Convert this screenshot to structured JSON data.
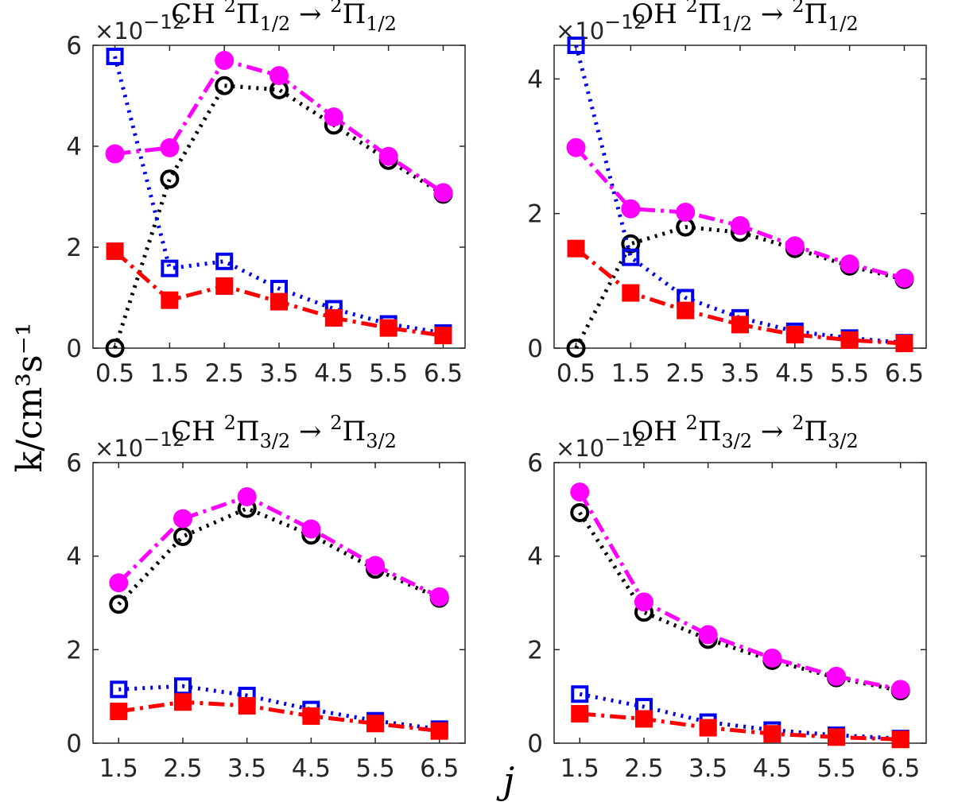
{
  "ylabel": "k/cm³s⁻¹",
  "xlabel": "j",
  "chart_data": [
    {
      "type": "line",
      "title": "CH ²Π1/2 → ²Π1/2",
      "title_parts": {
        "species": "CH",
        "from_sup": "2",
        "from_sub": "1/2",
        "to_sup": "2",
        "to_sub": "1/2"
      },
      "multiplier": "×10⁻¹²",
      "multiplier_parts": {
        "base": "×10",
        "exp": "−12"
      },
      "x": [
        0.5,
        1.5,
        2.5,
        3.5,
        4.5,
        5.5,
        6.5
      ],
      "xticks": [
        "0.5",
        "1.5",
        "2.5",
        "3.5",
        "4.5",
        "5.5",
        "6.5"
      ],
      "yticks": [
        "0",
        "2",
        "4",
        "6"
      ],
      "ylim": [
        0,
        6
      ],
      "series": [
        {
          "name": "black-open-circles",
          "color": "#000000",
          "marker": "open-circle",
          "linestyle": "dotted",
          "values": [
            0,
            3.35,
            5.2,
            5.12,
            4.42,
            3.72,
            3.05
          ]
        },
        {
          "name": "blue-open-squares",
          "color": "#0000ee",
          "marker": "open-square",
          "linestyle": "dotted",
          "values": [
            5.78,
            1.58,
            1.72,
            1.18,
            0.78,
            0.48,
            0.3
          ]
        },
        {
          "name": "magenta-filled-circles",
          "color": "#ff00ff",
          "marker": "filled-circle",
          "linestyle": "dashdot",
          "values": [
            3.85,
            3.97,
            5.7,
            5.4,
            4.58,
            3.8,
            3.08
          ]
        },
        {
          "name": "red-filled-squares",
          "color": "#ff0000",
          "marker": "filled-square",
          "linestyle": "dashdot",
          "values": [
            1.92,
            0.95,
            1.23,
            0.92,
            0.6,
            0.4,
            0.25
          ]
        }
      ]
    },
    {
      "type": "line",
      "title": "OH ²Π1/2 → ²Π1/2",
      "title_parts": {
        "species": "OH",
        "from_sup": "2",
        "from_sub": "1/2",
        "to_sup": "2",
        "to_sub": "1/2"
      },
      "multiplier": "×10⁻¹²",
      "multiplier_parts": {
        "base": "×10",
        "exp": "−12"
      },
      "x": [
        0.5,
        1.5,
        2.5,
        3.5,
        4.5,
        5.5,
        6.5
      ],
      "xticks": [
        "0.5",
        "1.5",
        "2.5",
        "3.5",
        "4.5",
        "5.5",
        "6.5"
      ],
      "yticks": [
        "0",
        "2",
        "4"
      ],
      "ylim": [
        0,
        4.5
      ],
      "series": [
        {
          "name": "black-open-circles",
          "color": "#000000",
          "marker": "open-circle",
          "linestyle": "dotted",
          "values": [
            0,
            1.55,
            1.8,
            1.72,
            1.48,
            1.22,
            1.02
          ]
        },
        {
          "name": "blue-open-squares",
          "color": "#0000ee",
          "marker": "open-square",
          "linestyle": "dotted",
          "values": [
            4.5,
            1.35,
            0.75,
            0.45,
            0.25,
            0.15,
            0.08
          ]
        },
        {
          "name": "magenta-filled-circles",
          "color": "#ff00ff",
          "marker": "filled-circle",
          "linestyle": "dashdot",
          "values": [
            2.98,
            2.07,
            2.02,
            1.82,
            1.52,
            1.25,
            1.04
          ]
        },
        {
          "name": "red-filled-squares",
          "color": "#ff0000",
          "marker": "filled-square",
          "linestyle": "dashdot",
          "values": [
            1.48,
            0.82,
            0.56,
            0.35,
            0.2,
            0.12,
            0.07
          ]
        }
      ]
    },
    {
      "type": "line",
      "title": "CH ²Π3/2 → ²Π3/2",
      "title_parts": {
        "species": "CH",
        "from_sup": "2",
        "from_sub": "3/2",
        "to_sup": "2",
        "to_sub": "3/2"
      },
      "multiplier": "×10⁻¹²",
      "multiplier_parts": {
        "base": "×10",
        "exp": "−12"
      },
      "x": [
        1.5,
        2.5,
        3.5,
        4.5,
        5.5,
        6.5
      ],
      "xticks": [
        "1.5",
        "2.5",
        "3.5",
        "4.5",
        "5.5",
        "6.5"
      ],
      "yticks": [
        "0",
        "2",
        "4",
        "6"
      ],
      "ylim": [
        0,
        6
      ],
      "series": [
        {
          "name": "black-open-circles",
          "color": "#000000",
          "marker": "open-circle",
          "linestyle": "dotted",
          "values": [
            2.97,
            4.42,
            5.02,
            4.45,
            3.72,
            3.1
          ]
        },
        {
          "name": "blue-open-squares",
          "color": "#0000ee",
          "marker": "open-square",
          "linestyle": "dotted",
          "values": [
            1.15,
            1.22,
            1.02,
            0.72,
            0.48,
            0.3
          ]
        },
        {
          "name": "magenta-filled-circles",
          "color": "#ff00ff",
          "marker": "filled-circle",
          "linestyle": "dashdot",
          "values": [
            3.43,
            4.8,
            5.27,
            4.58,
            3.8,
            3.13
          ]
        },
        {
          "name": "red-filled-squares",
          "color": "#ff0000",
          "marker": "filled-square",
          "linestyle": "dashdot",
          "values": [
            0.68,
            0.88,
            0.8,
            0.58,
            0.42,
            0.26
          ]
        }
      ]
    },
    {
      "type": "line",
      "title": "OH ²Π3/2 → ²Π3/2",
      "title_parts": {
        "species": "OH",
        "from_sup": "2",
        "from_sub": "3/2",
        "to_sup": "2",
        "to_sub": "3/2"
      },
      "multiplier": "×10⁻¹²",
      "multiplier_parts": {
        "base": "×10",
        "exp": "−12"
      },
      "x": [
        1.5,
        2.5,
        3.5,
        4.5,
        5.5,
        6.5
      ],
      "xticks": [
        "1.5",
        "2.5",
        "3.5",
        "4.5",
        "5.5",
        "6.5"
      ],
      "yticks": [
        "0",
        "2",
        "4",
        "6"
      ],
      "ylim": [
        0,
        6
      ],
      "series": [
        {
          "name": "black-open-circles",
          "color": "#000000",
          "marker": "open-circle",
          "linestyle": "dotted",
          "values": [
            4.93,
            2.8,
            2.22,
            1.77,
            1.4,
            1.12
          ]
        },
        {
          "name": "blue-open-squares",
          "color": "#0000ee",
          "marker": "open-square",
          "linestyle": "dotted",
          "values": [
            1.05,
            0.78,
            0.45,
            0.28,
            0.17,
            0.1
          ]
        },
        {
          "name": "magenta-filled-circles",
          "color": "#ff00ff",
          "marker": "filled-circle",
          "linestyle": "dashdot",
          "values": [
            5.37,
            3.02,
            2.32,
            1.82,
            1.43,
            1.15
          ]
        },
        {
          "name": "red-filled-squares",
          "color": "#ff0000",
          "marker": "filled-square",
          "linestyle": "dashdot",
          "values": [
            0.63,
            0.52,
            0.33,
            0.2,
            0.13,
            0.08
          ]
        }
      ]
    }
  ]
}
